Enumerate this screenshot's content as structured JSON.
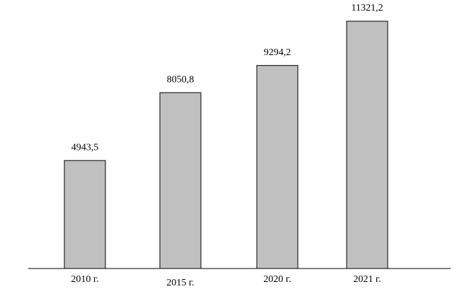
{
  "chart_data": {
    "type": "bar",
    "categories": [
      "2010 г.",
      "2015 г.",
      "2020 г.",
      "2021 г."
    ],
    "values": [
      4943.5,
      8050.8,
      9294.2,
      11321.2
    ],
    "value_labels": [
      "4943,5",
      "8050,8",
      "9294,2",
      "11321,2"
    ],
    "color": "#c0c0c0"
  }
}
